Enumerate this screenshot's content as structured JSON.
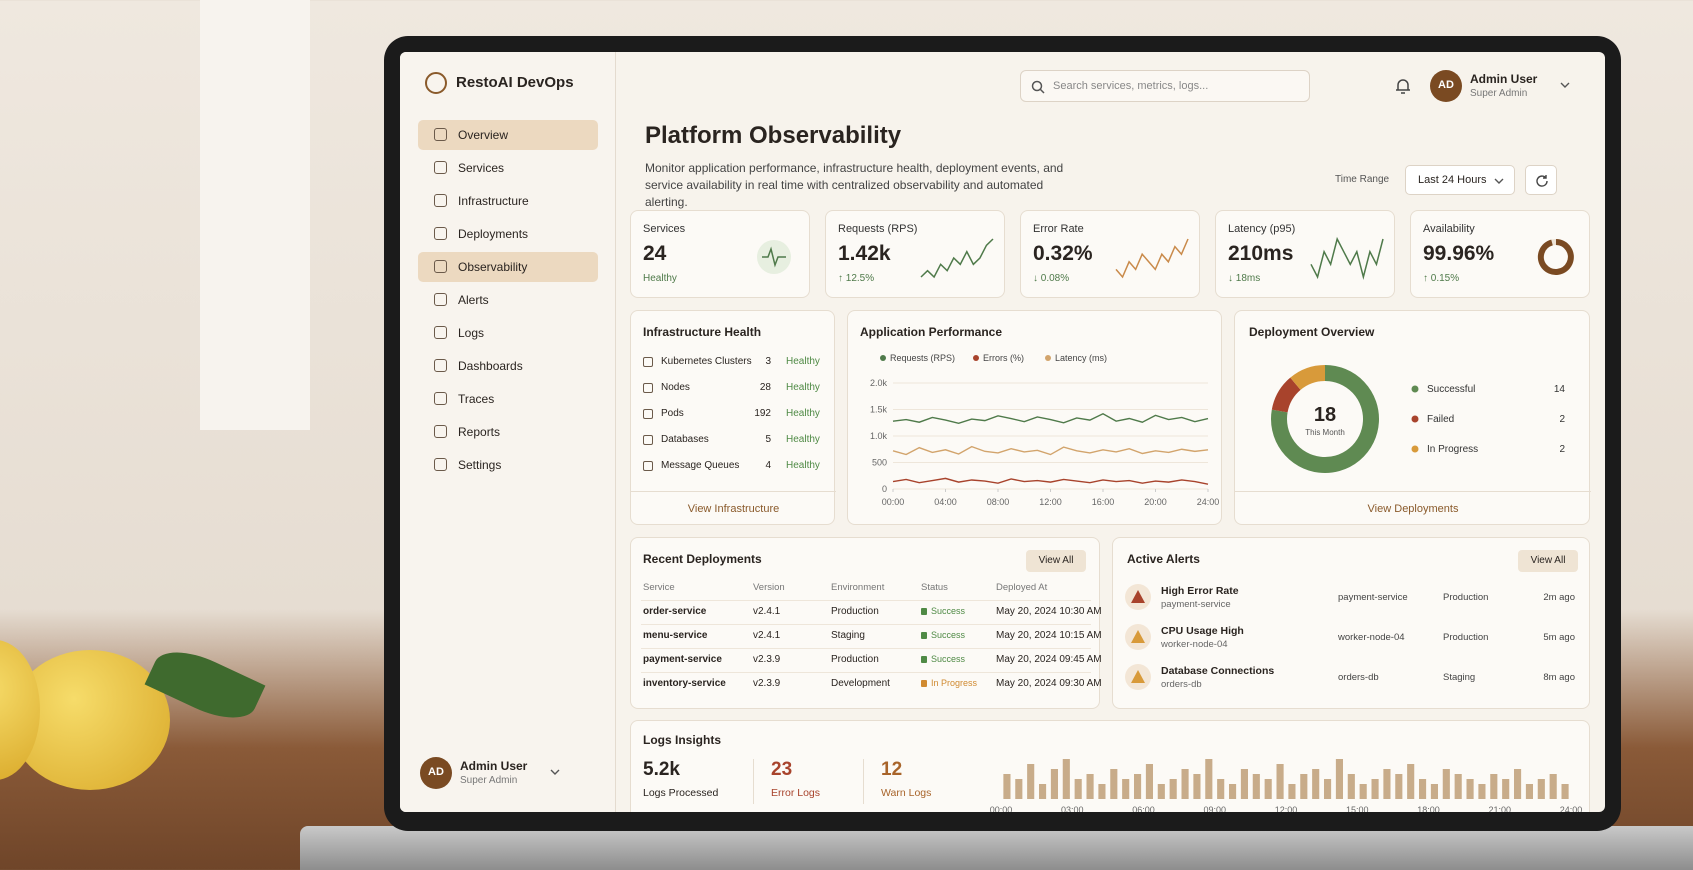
{
  "brand": "RestoAI DevOps",
  "nav": [
    {
      "label": "Overview",
      "active": true
    },
    {
      "label": "Services"
    },
    {
      "label": "Infrastructure"
    },
    {
      "label": "Deployments"
    },
    {
      "label": "Observability",
      "active": true
    },
    {
      "label": "Alerts"
    },
    {
      "label": "Logs"
    },
    {
      "label": "Dashboards"
    },
    {
      "label": "Traces"
    },
    {
      "label": "Reports"
    },
    {
      "label": "Settings"
    }
  ],
  "sidebar_user": {
    "initials": "AD",
    "name": "Admin User",
    "role": "Super Admin"
  },
  "search_placeholder": "Search services, metrics, logs...",
  "header_user": {
    "initials": "AD",
    "name": "Admin User",
    "role": "Super Admin"
  },
  "page": {
    "title": "Platform Observability",
    "description": "Monitor application performance, infrastructure health, deployment events, and service availability in real time with centralized observability and automated alerting.",
    "time_range_label": "Time Range",
    "time_range": "Last 24 Hours"
  },
  "kpis": [
    {
      "label": "Services",
      "value": "24",
      "note": "Healthy"
    },
    {
      "label": "Requests (RPS)",
      "value": "1.42k",
      "note": "↑ 12.5%",
      "trend": [
        3,
        4,
        3,
        5,
        4,
        6,
        5,
        7,
        5,
        6,
        8,
        9
      ],
      "trend_color": "#4f7a4a"
    },
    {
      "label": "Error Rate",
      "value": "0.32%",
      "note": "↓ 0.08%",
      "trend": [
        3,
        2,
        4,
        3,
        5,
        4,
        3,
        5,
        4,
        6,
        5,
        7
      ],
      "trend_color": "#c98a4a"
    },
    {
      "label": "Latency (p95)",
      "value": "210ms",
      "note": "↓ 18ms",
      "trend": [
        4,
        3,
        5,
        4,
        6,
        5,
        4,
        5,
        3,
        5,
        4,
        6
      ],
      "trend_color": "#4f7a4a"
    },
    {
      "label": "Availability",
      "value": "99.96%",
      "note": "↑ 0.15%"
    }
  ],
  "infrastructure": {
    "title": "Infrastructure Health",
    "rows": [
      {
        "name": "Kubernetes Clusters",
        "count": 3,
        "status": "Healthy"
      },
      {
        "name": "Nodes",
        "count": 28,
        "status": "Healthy"
      },
      {
        "name": "Pods",
        "count": 192,
        "status": "Healthy"
      },
      {
        "name": "Databases",
        "count": 5,
        "status": "Healthy"
      },
      {
        "name": "Message Queues",
        "count": 4,
        "status": "Healthy"
      }
    ],
    "link": "View Infrastructure"
  },
  "app_performance": {
    "type": "line",
    "title": "Application Performance",
    "x": [
      0,
      1,
      2,
      3,
      4,
      5,
      6,
      7,
      8,
      9,
      10,
      11,
      12,
      13,
      14,
      15,
      16,
      17,
      18,
      19,
      20,
      21,
      22,
      23,
      24
    ],
    "xlim": [
      0,
      24
    ],
    "xticks": [
      {
        "value": 0,
        "label": "00:00"
      },
      {
        "value": 4,
        "label": "04:00"
      },
      {
        "value": 8,
        "label": "08:00"
      },
      {
        "value": 12,
        "label": "12:00"
      },
      {
        "value": 16,
        "label": "16:00"
      },
      {
        "value": 20,
        "label": "20:00"
      },
      {
        "value": 24,
        "label": "24:00"
      }
    ],
    "ylim": [
      0,
      2000
    ],
    "yticks": [
      0,
      500,
      {
        "value": 1000,
        "label": "1.0k"
      },
      {
        "value": 1500,
        "label": "1.5k"
      },
      {
        "value": 2000,
        "label": "2.0k"
      }
    ],
    "series": [
      {
        "name": "Requests (RPS)",
        "color": "#4f7a4a",
        "values": [
          1280,
          1310,
          1260,
          1350,
          1300,
          1240,
          1320,
          1290,
          1380,
          1330,
          1270,
          1360,
          1310,
          1250,
          1340,
          1300,
          1420,
          1280,
          1330,
          1260,
          1390,
          1310,
          1350,
          1270,
          1330
        ]
      },
      {
        "name": "Errors (%)",
        "color": "#a8432c",
        "values": [
          140,
          180,
          120,
          160,
          200,
          130,
          170,
          150,
          110,
          190,
          140,
          160,
          130,
          180,
          150,
          120,
          170,
          140,
          160,
          110,
          150,
          130,
          170,
          140,
          90
        ]
      },
      {
        "name": "Latency (ms)",
        "color": "#d2a46c",
        "values": [
          720,
          650,
          780,
          690,
          740,
          660,
          800,
          710,
          680,
          760,
          700,
          730,
          650,
          790,
          720,
          680,
          740,
          700,
          760,
          670,
          720,
          690,
          750,
          710,
          740
        ]
      }
    ]
  },
  "deployment_overview": {
    "type": "pie",
    "title": "Deployment Overview",
    "total": 18,
    "center_label": "This Month",
    "categories": [
      "Successful",
      "Failed",
      "In Progress"
    ],
    "values": [
      14,
      2,
      2
    ],
    "colors": [
      "#5f8a52",
      "#a8432c",
      "#d89a3a"
    ],
    "link": "View Deployments"
  },
  "recent_deployments": {
    "title": "Recent Deployments",
    "action": "View All",
    "columns": [
      "Service",
      "Version",
      "Environment",
      "Status",
      "Deployed At"
    ],
    "rows": [
      {
        "service": "order-service",
        "version": "v2.4.1",
        "environment": "Production",
        "status": "Success",
        "status_color": "#4f8a45",
        "deployed_at": "May 20, 2024 10:30 AM"
      },
      {
        "service": "menu-service",
        "version": "v2.4.1",
        "environment": "Staging",
        "status": "Success",
        "status_color": "#4f8a45",
        "deployed_at": "May 20, 2024 10:15 AM"
      },
      {
        "service": "payment-service",
        "version": "v2.3.9",
        "environment": "Production",
        "status": "Success",
        "status_color": "#4f8a45",
        "deployed_at": "May 20, 2024 09:45 AM"
      },
      {
        "service": "inventory-service",
        "version": "v2.3.9",
        "environment": "Development",
        "status": "In Progress",
        "status_color": "#d08a30",
        "deployed_at": "May 20, 2024 09:30 AM"
      }
    ]
  },
  "active_alerts": {
    "title": "Active Alerts",
    "action": "View All",
    "items": [
      {
        "title": "High Error Rate",
        "source": "payment-service",
        "host": "payment-service",
        "environment": "Production",
        "time": "2m ago",
        "color": "#a8432c"
      },
      {
        "title": "CPU Usage High",
        "source": "worker-node-04",
        "host": "worker-node-04",
        "environment": "Production",
        "time": "5m ago",
        "color": "#d89a3a"
      },
      {
        "title": "Database Connections",
        "source": "orders-db",
        "host": "orders-db",
        "environment": "Staging",
        "time": "8m ago",
        "color": "#d89a3a"
      }
    ]
  },
  "logs_insights": {
    "title": "Logs Insights",
    "stats": [
      {
        "value": "5.2k",
        "label": "Logs Processed",
        "color": "#2a2420"
      },
      {
        "value": "23",
        "label": "Error Logs",
        "color": "#a8432c"
      },
      {
        "value": "12",
        "label": "Warn Logs",
        "color": "#a8642a"
      }
    ],
    "chart": {
      "type": "bar",
      "color": "#c8ac8a",
      "values": [
        5,
        4,
        7,
        3,
        6,
        8,
        4,
        5,
        3,
        6,
        4,
        5,
        7,
        3,
        4,
        6,
        5,
        8,
        4,
        3,
        6,
        5,
        4,
        7,
        3,
        5,
        6,
        4,
        8,
        5,
        3,
        4,
        6,
        5,
        7,
        4,
        3,
        6,
        5,
        4,
        3,
        5,
        4,
        6,
        3,
        4,
        5,
        3
      ],
      "x_labels": [
        "00:00",
        "03:00",
        "06:00",
        "09:00",
        "12:00",
        "15:00",
        "18:00",
        "21:00",
        "24:00"
      ]
    }
  }
}
